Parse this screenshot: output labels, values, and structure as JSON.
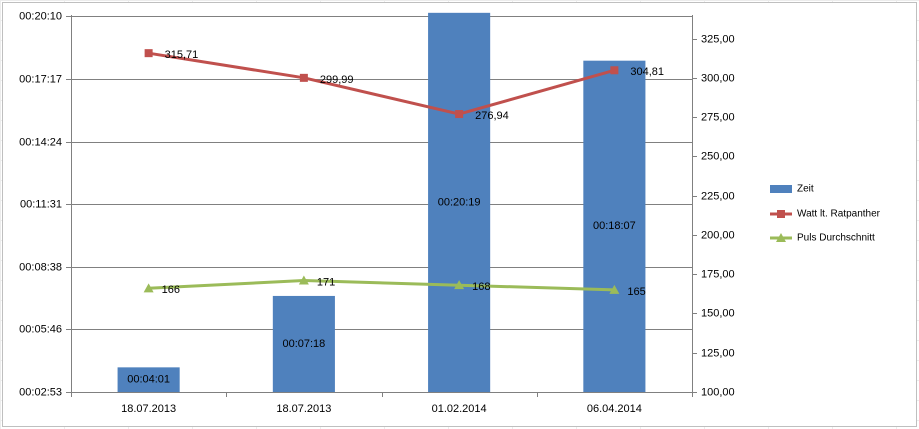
{
  "colors": {
    "bar": "#4f81bd",
    "watt_line": "#c0504d",
    "pulse_line": "#9bbb59",
    "grid": "#808080",
    "background": "#ffffff"
  },
  "chart_data": {
    "type": "bar",
    "categories": [
      "18.07.2013",
      "18.07.2013",
      "01.02.2014",
      "06.04.2014"
    ],
    "grid": true,
    "legend_position": "right",
    "y_left": {
      "scale": "time",
      "ylim_seconds": [
        173,
        1213
      ],
      "tick_labels": [
        "00:02:53",
        "00:05:46",
        "00:08:38",
        "00:11:31",
        "00:14:24",
        "00:17:17",
        "00:20:10"
      ],
      "tick_seconds": [
        173,
        346,
        518,
        691,
        864,
        1037,
        1210
      ]
    },
    "y_right": {
      "ylim": [
        100,
        340
      ],
      "tick_labels": [
        "100,00",
        "125,00",
        "150,00",
        "175,00",
        "200,00",
        "225,00",
        "250,00",
        "275,00",
        "300,00",
        "325,00"
      ],
      "tick_values": [
        100,
        125,
        150,
        175,
        200,
        225,
        250,
        275,
        300,
        325
      ]
    },
    "series": [
      {
        "name": "Zeit",
        "type": "bar",
        "axis": "left",
        "values_seconds": [
          241,
          438,
          1219,
          1087
        ],
        "labels": [
          "00:04:01",
          "00:07:18",
          "00:20:19",
          "00:18:07"
        ]
      },
      {
        "name": "Watt lt. Ratpanther",
        "type": "line",
        "axis": "right",
        "marker": "square",
        "values": [
          315.71,
          299.99,
          276.94,
          304.81
        ],
        "labels": [
          "315,71",
          "299,99",
          "276,94",
          "304,81"
        ]
      },
      {
        "name": "Puls Durchschnitt",
        "type": "line",
        "axis": "right",
        "marker": "triangle",
        "values": [
          166,
          171,
          168,
          165
        ],
        "labels": [
          "166",
          "171",
          "168",
          "165"
        ]
      }
    ]
  }
}
